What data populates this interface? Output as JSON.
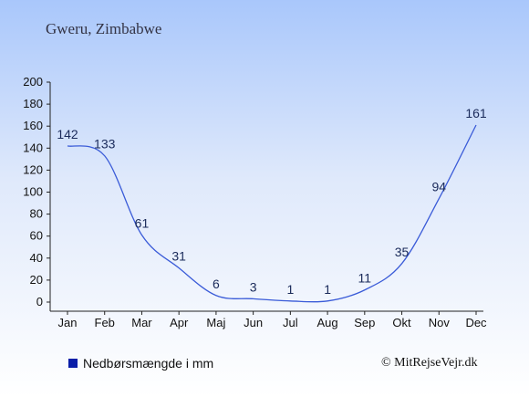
{
  "header": {
    "location": "Gweru, Zimbabwe"
  },
  "legend": {
    "label": "Nedbørsmængde i mm",
    "color": "#0a1ea8"
  },
  "footer": {
    "copyright": "© MitRejseVejr.dk"
  },
  "chart_data": {
    "type": "line",
    "categories": [
      "Jan",
      "Feb",
      "Mar",
      "Apr",
      "Maj",
      "Jun",
      "Jul",
      "Aug",
      "Sep",
      "Okt",
      "Nov",
      "Dec"
    ],
    "series": [
      {
        "name": "Nedbørsmængde i mm",
        "values": [
          142,
          133,
          61,
          31,
          6,
          3,
          1,
          1,
          11,
          35,
          94,
          161
        ],
        "color": "#3a5bd8"
      }
    ],
    "yticks": [
      0,
      20,
      40,
      60,
      80,
      100,
      120,
      140,
      160,
      180,
      200
    ],
    "ylim": [
      0,
      200
    ],
    "grid": false
  }
}
